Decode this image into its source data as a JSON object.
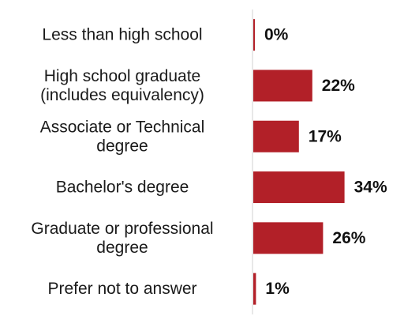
{
  "chart_data": {
    "type": "bar",
    "orientation": "horizontal",
    "categories": [
      [
        "Less than high school"
      ],
      [
        "High school graduate",
        "(includes equivalency)"
      ],
      [
        "Associate or Technical",
        "degree"
      ],
      [
        "Bachelor's degree"
      ],
      [
        "Graduate or professional",
        "degree"
      ],
      [
        "Prefer not to answer"
      ]
    ],
    "values": [
      0,
      22,
      17,
      34,
      26,
      1
    ],
    "value_labels": [
      "0%",
      "22%",
      "17%",
      "34%",
      "26%",
      "1%"
    ],
    "xlim": [
      0,
      40
    ],
    "grid": false,
    "legend": "none",
    "colors": {
      "bar": "#b22028",
      "axis": "#d0d0d0",
      "text": "#1a1a1a"
    }
  }
}
